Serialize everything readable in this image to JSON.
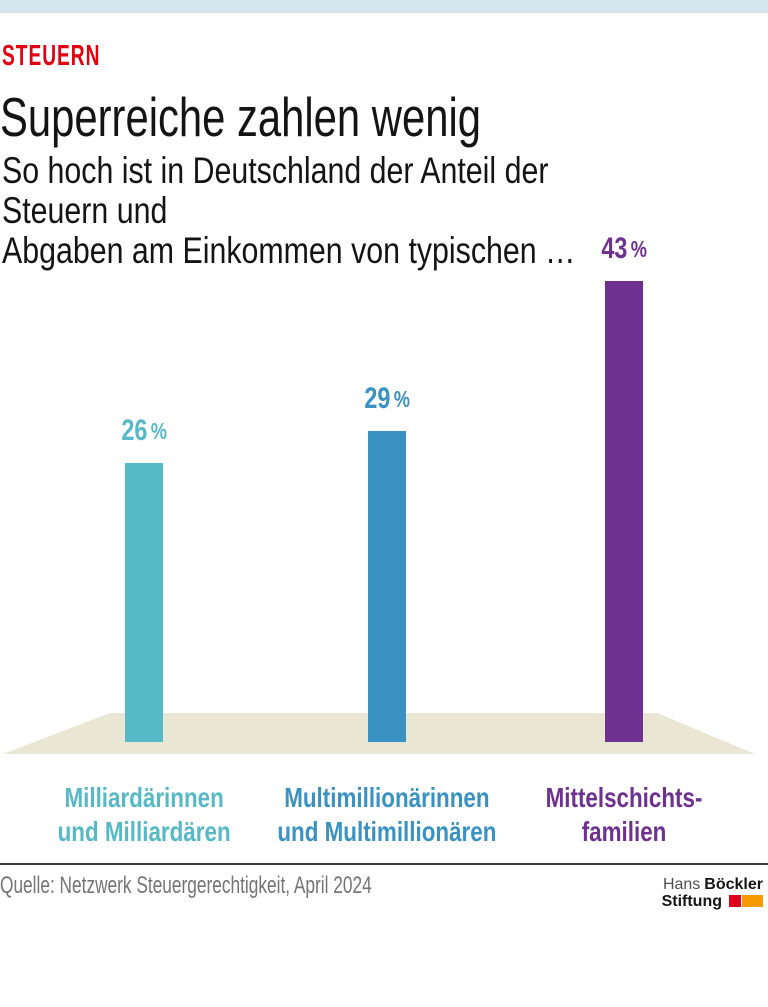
{
  "theme": {
    "top_strip_color": "#d3e6ee",
    "kicker_color": "#e3000f",
    "text_color": "#141414"
  },
  "header": {
    "kicker": "STEUERN",
    "title": "Superreiche zahlen wenig",
    "subtitle": "So hoch ist in Deutschland der Anteil der Steuern und\nAbgaben am Einkommen von typischen …"
  },
  "chart_data": {
    "type": "bar",
    "categories": [
      "Milliardärinnen\nund Milliardären",
      "Multimillionärinnen\nund Multimillionären",
      "Mittelschichts-\nfamilien"
    ],
    "values": [
      26,
      29,
      43
    ],
    "value_labels": [
      "26 %",
      "29 %",
      "43 %"
    ],
    "bar_colors": [
      "#56b9c6",
      "#3a92c3",
      "#6e3190"
    ],
    "floor_color": "#e9e6d3",
    "unit": "percent of income paid as taxes and levies",
    "ylim": [
      0,
      45
    ],
    "grid": false,
    "legend": false
  },
  "footer": {
    "source": "Quelle: Netzwerk Steuergerechtigkeit, April 2024",
    "logo": {
      "line1_light": "Hans",
      "line1_bold": "Böckler",
      "line2_bold": "Stiftung",
      "square_red": "#e2001a",
      "square_orange": "#f59b00"
    }
  }
}
